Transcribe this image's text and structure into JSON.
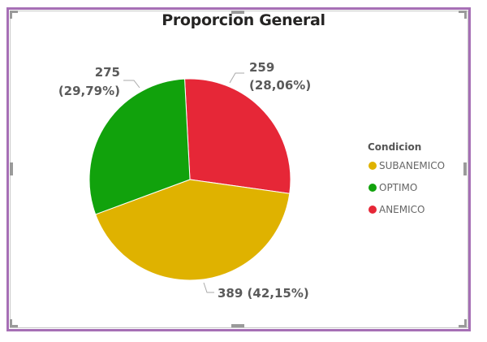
{
  "chart_data": {
    "type": "pie",
    "title": "Proporcion General",
    "legend_title": "Condicion",
    "legend_position": "right",
    "slices": [
      {
        "name": "ANEMICO",
        "value": 259,
        "percent_label": "(28,06%)",
        "color": "#e62737"
      },
      {
        "name": "SUBANEMICO",
        "value": 389,
        "percent_label": "(42,15%)",
        "color": "#dfb200"
      },
      {
        "name": "OPTIMO",
        "value": 275,
        "percent_label": "(29,79%)",
        "color": "#11a20c"
      }
    ],
    "legend_order": [
      "SUBANEMICO",
      "OPTIMO",
      "ANEMICO"
    ]
  },
  "frame": {
    "accent_color": "#a66fb5"
  }
}
